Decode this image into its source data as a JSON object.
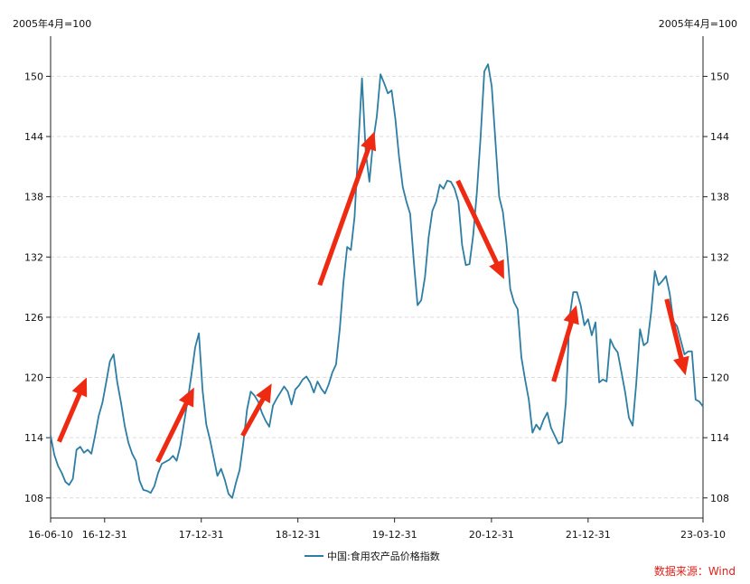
{
  "chart_data": {
    "type": "line",
    "title": "",
    "y_unit_left": "2005年4月=100",
    "y_unit_right": "2005年4月=100",
    "ylim": [
      106,
      154
    ],
    "y_ticks": [
      108,
      114,
      120,
      126,
      132,
      138,
      144,
      150
    ],
    "x_range": [
      "2016-06-10",
      "2023-03-10"
    ],
    "x_ticks": [
      {
        "date": "2016-06-10",
        "label": "16-06-10"
      },
      {
        "date": "2016-12-31",
        "label": "16-12-31"
      },
      {
        "date": "2017-12-31",
        "label": "17-12-31"
      },
      {
        "date": "2018-12-31",
        "label": "18-12-31"
      },
      {
        "date": "2019-12-31",
        "label": "19-12-31"
      },
      {
        "date": "2020-12-31",
        "label": "20-12-31"
      },
      {
        "date": "2021-12-31",
        "label": "21-12-31"
      },
      {
        "date": "2023-03-10",
        "label": "23-03-10"
      }
    ],
    "grid": "horizontal-dashed",
    "legend_position": "bottom-center",
    "series": [
      {
        "name": "中国:食用农产品价格指数",
        "color": "#2e7da3",
        "points": [
          [
            "2016-06-10",
            114.2
          ],
          [
            "2016-06-24",
            112.3
          ],
          [
            "2016-07-08",
            111.2
          ],
          [
            "2016-07-22",
            110.5
          ],
          [
            "2016-08-05",
            109.6
          ],
          [
            "2016-08-19",
            109.3
          ],
          [
            "2016-09-02",
            109.9
          ],
          [
            "2016-09-16",
            112.8
          ],
          [
            "2016-09-30",
            113.1
          ],
          [
            "2016-10-14",
            112.5
          ],
          [
            "2016-10-28",
            112.8
          ],
          [
            "2016-11-11",
            112.4
          ],
          [
            "2016-11-25",
            114.2
          ],
          [
            "2016-12-09",
            116.2
          ],
          [
            "2016-12-23",
            117.5
          ],
          [
            "2017-01-06",
            119.5
          ],
          [
            "2017-01-20",
            121.6
          ],
          [
            "2017-02-03",
            122.3
          ],
          [
            "2017-02-17",
            119.5
          ],
          [
            "2017-03-03",
            117.5
          ],
          [
            "2017-03-17",
            115.2
          ],
          [
            "2017-03-31",
            113.5
          ],
          [
            "2017-04-14",
            112.4
          ],
          [
            "2017-04-28",
            111.7
          ],
          [
            "2017-05-12",
            109.7
          ],
          [
            "2017-05-26",
            108.8
          ],
          [
            "2017-06-09",
            108.7
          ],
          [
            "2017-06-23",
            108.5
          ],
          [
            "2017-07-07",
            109.2
          ],
          [
            "2017-07-21",
            110.5
          ],
          [
            "2017-08-04",
            111.4
          ],
          [
            "2017-08-18",
            111.6
          ],
          [
            "2017-09-01",
            111.8
          ],
          [
            "2017-09-15",
            112.2
          ],
          [
            "2017-09-29",
            111.7
          ],
          [
            "2017-10-13",
            113.2
          ],
          [
            "2017-10-27",
            115.5
          ],
          [
            "2017-11-10",
            117.8
          ],
          [
            "2017-11-24",
            120.3
          ],
          [
            "2017-12-08",
            123.0
          ],
          [
            "2017-12-22",
            124.4
          ],
          [
            "2018-01-05",
            118.7
          ],
          [
            "2018-01-19",
            115.3
          ],
          [
            "2018-02-02",
            113.8
          ],
          [
            "2018-02-16",
            112.0
          ],
          [
            "2018-03-02",
            110.2
          ],
          [
            "2018-03-16",
            110.9
          ],
          [
            "2018-03-30",
            109.8
          ],
          [
            "2018-04-13",
            108.4
          ],
          [
            "2018-04-27",
            108.0
          ],
          [
            "2018-05-11",
            109.5
          ],
          [
            "2018-05-25",
            110.8
          ],
          [
            "2018-06-08",
            113.5
          ],
          [
            "2018-06-22",
            116.8
          ],
          [
            "2018-07-06",
            118.6
          ],
          [
            "2018-07-20",
            118.2
          ],
          [
            "2018-08-03",
            117.6
          ],
          [
            "2018-08-17",
            116.5
          ],
          [
            "2018-08-31",
            115.7
          ],
          [
            "2018-09-14",
            115.1
          ],
          [
            "2018-09-28",
            117.2
          ],
          [
            "2018-10-12",
            117.9
          ],
          [
            "2018-10-26",
            118.5
          ],
          [
            "2018-11-09",
            119.1
          ],
          [
            "2018-11-23",
            118.6
          ],
          [
            "2018-12-07",
            117.3
          ],
          [
            "2018-12-21",
            118.8
          ],
          [
            "2019-01-04",
            119.2
          ],
          [
            "2019-01-18",
            119.8
          ],
          [
            "2019-02-01",
            120.1
          ],
          [
            "2019-02-15",
            119.5
          ],
          [
            "2019-03-01",
            118.5
          ],
          [
            "2019-03-15",
            119.6
          ],
          [
            "2019-03-29",
            118.9
          ],
          [
            "2019-04-12",
            118.4
          ],
          [
            "2019-04-26",
            119.3
          ],
          [
            "2019-05-10",
            120.5
          ],
          [
            "2019-05-24",
            121.3
          ],
          [
            "2019-06-07",
            124.8
          ],
          [
            "2019-06-21",
            129.5
          ],
          [
            "2019-07-05",
            133.0
          ],
          [
            "2019-07-19",
            132.7
          ],
          [
            "2019-08-02",
            136.0
          ],
          [
            "2019-08-16",
            143.0
          ],
          [
            "2019-08-30",
            149.8
          ],
          [
            "2019-09-13",
            142.5
          ],
          [
            "2019-09-27",
            139.5
          ],
          [
            "2019-10-11",
            143.5
          ],
          [
            "2019-10-25",
            146.0
          ],
          [
            "2019-11-08",
            150.2
          ],
          [
            "2019-11-22",
            149.3
          ],
          [
            "2019-12-06",
            148.3
          ],
          [
            "2019-12-20",
            148.6
          ],
          [
            "2020-01-03",
            145.8
          ],
          [
            "2020-01-17",
            142.0
          ],
          [
            "2020-01-31",
            139.0
          ],
          [
            "2020-02-14",
            137.5
          ],
          [
            "2020-02-28",
            136.3
          ],
          [
            "2020-03-13",
            131.5
          ],
          [
            "2020-03-27",
            127.2
          ],
          [
            "2020-04-10",
            127.7
          ],
          [
            "2020-04-24",
            130.0
          ],
          [
            "2020-05-08",
            134.0
          ],
          [
            "2020-05-22",
            136.6
          ],
          [
            "2020-06-05",
            137.5
          ],
          [
            "2020-06-19",
            139.2
          ],
          [
            "2020-07-03",
            138.8
          ],
          [
            "2020-07-17",
            139.6
          ],
          [
            "2020-07-31",
            139.5
          ],
          [
            "2020-08-14",
            138.8
          ],
          [
            "2020-08-28",
            137.5
          ],
          [
            "2020-09-11",
            133.2
          ],
          [
            "2020-09-25",
            131.2
          ],
          [
            "2020-10-09",
            131.3
          ],
          [
            "2020-10-23",
            134.2
          ],
          [
            "2020-11-06",
            138.5
          ],
          [
            "2020-11-20",
            144.0
          ],
          [
            "2020-12-04",
            150.5
          ],
          [
            "2020-12-18",
            151.2
          ],
          [
            "2021-01-01",
            149.0
          ],
          [
            "2021-01-15",
            143.5
          ],
          [
            "2021-01-29",
            138.0
          ],
          [
            "2021-02-12",
            136.5
          ],
          [
            "2021-02-26",
            133.3
          ],
          [
            "2021-03-12",
            128.8
          ],
          [
            "2021-03-26",
            127.5
          ],
          [
            "2021-04-09",
            126.8
          ],
          [
            "2021-04-23",
            122.0
          ],
          [
            "2021-05-07",
            119.8
          ],
          [
            "2021-05-21",
            117.8
          ],
          [
            "2021-06-04",
            114.5
          ],
          [
            "2021-06-18",
            115.3
          ],
          [
            "2021-07-02",
            114.8
          ],
          [
            "2021-07-16",
            115.8
          ],
          [
            "2021-07-30",
            116.5
          ],
          [
            "2021-08-13",
            115.0
          ],
          [
            "2021-08-27",
            114.2
          ],
          [
            "2021-09-10",
            113.4
          ],
          [
            "2021-09-24",
            113.6
          ],
          [
            "2021-10-08",
            117.5
          ],
          [
            "2021-10-22",
            126.0
          ],
          [
            "2021-11-05",
            128.5
          ],
          [
            "2021-11-19",
            128.5
          ],
          [
            "2021-12-03",
            127.2
          ],
          [
            "2021-12-17",
            125.2
          ],
          [
            "2021-12-31",
            125.8
          ],
          [
            "2022-01-14",
            124.2
          ],
          [
            "2022-01-28",
            125.5
          ],
          [
            "2022-02-11",
            119.5
          ],
          [
            "2022-02-25",
            119.8
          ],
          [
            "2022-03-11",
            119.6
          ],
          [
            "2022-03-25",
            123.8
          ],
          [
            "2022-04-08",
            123.0
          ],
          [
            "2022-04-22",
            122.5
          ],
          [
            "2022-05-06",
            120.5
          ],
          [
            "2022-05-20",
            118.5
          ],
          [
            "2022-06-03",
            116.0
          ],
          [
            "2022-06-17",
            115.2
          ],
          [
            "2022-07-01",
            119.5
          ],
          [
            "2022-07-15",
            124.8
          ],
          [
            "2022-07-29",
            123.2
          ],
          [
            "2022-08-12",
            123.5
          ],
          [
            "2022-08-26",
            126.5
          ],
          [
            "2022-09-09",
            130.6
          ],
          [
            "2022-09-23",
            129.2
          ],
          [
            "2022-10-07",
            129.6
          ],
          [
            "2022-10-21",
            130.1
          ],
          [
            "2022-11-04",
            128.4
          ],
          [
            "2022-11-18",
            125.6
          ],
          [
            "2022-12-02",
            125.1
          ],
          [
            "2022-12-16",
            123.7
          ],
          [
            "2022-12-30",
            122.3
          ],
          [
            "2023-01-13",
            122.6
          ],
          [
            "2023-01-27",
            122.6
          ],
          [
            "2023-02-10",
            117.8
          ],
          [
            "2023-02-24",
            117.6
          ],
          [
            "2023-03-10",
            117.1
          ]
        ]
      }
    ],
    "annotations": [
      {
        "type": "arrow",
        "color": "#ee2a12",
        "from": [
          "2016-07-12",
          113.6
        ],
        "to": [
          "2016-10-24",
          120.0
        ]
      },
      {
        "type": "arrow",
        "color": "#ee2a12",
        "from": [
          "2017-07-19",
          111.6
        ],
        "to": [
          "2017-12-04",
          119.0
        ]
      },
      {
        "type": "arrow",
        "color": "#ee2a12",
        "from": [
          "2018-06-05",
          114.2
        ],
        "to": [
          "2018-09-23",
          119.4
        ]
      },
      {
        "type": "arrow",
        "color": "#ee2a12",
        "from": [
          "2019-03-23",
          129.2
        ],
        "to": [
          "2019-10-16",
          144.5
        ]
      },
      {
        "type": "arrow",
        "color": "#ee2a12",
        "from": [
          "2020-08-26",
          139.6
        ],
        "to": [
          "2021-02-17",
          129.8
        ]
      },
      {
        "type": "arrow",
        "color": "#ee2a12",
        "from": [
          "2021-08-23",
          119.6
        ],
        "to": [
          "2021-11-17",
          127.2
        ]
      },
      {
        "type": "arrow",
        "color": "#ee2a12",
        "from": [
          "2022-10-24",
          127.8
        ],
        "to": [
          "2023-01-03",
          120.2
        ]
      }
    ]
  },
  "legend": {
    "label": "中国:食用农产品价格指数",
    "color": "#2e7da3"
  },
  "source_note": "数据来源：Wind"
}
